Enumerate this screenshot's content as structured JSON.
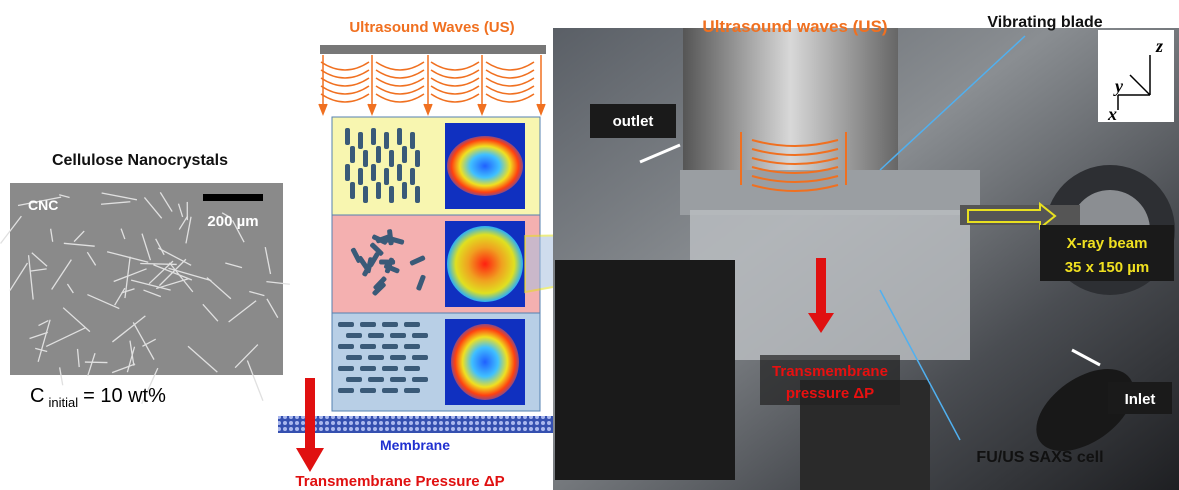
{
  "left_panel": {
    "title": "Cellulose Nanocrystals",
    "image_label": "CNC",
    "scale_bar": "200 µm",
    "concentration": {
      "symbol": "C",
      "subscript": "initial",
      "text": "= 10 wt%"
    }
  },
  "schematic": {
    "title": "Ultrasound Waves (US)",
    "membrane": "Membrane",
    "pressure": "Transmembrane Pressure ΔP"
  },
  "photo": {
    "title": "Ultrasound waves (US)",
    "vibrating_blade": "Vibrating blade",
    "outlet": "outlet",
    "axes": {
      "y": "y",
      "z": "z",
      "x": "x"
    },
    "xray": [
      "X-ray beam",
      "35 x 150 µm"
    ],
    "pressure": [
      "Transmembrane",
      "pressure ΔP"
    ],
    "inlet": "Inlet",
    "cell": "FU/US SAXS cell"
  }
}
